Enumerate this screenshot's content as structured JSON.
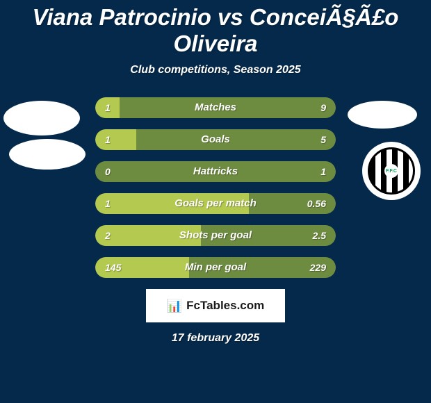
{
  "background_color": "#05294a",
  "text_color": "#ffffff",
  "title": "Viana Patrocinio vs ConceiÃ§Ã£o Oliveira",
  "subtitle": "Club competitions, Season 2025",
  "date": "17 february 2025",
  "watermark": {
    "text": "FcTables.com",
    "bg": "#ffffff",
    "fg": "#1a1a1a",
    "icon": "📊"
  },
  "ellipse_color": "#ffffff",
  "badge": {
    "bg": "#ffffff",
    "text": "F.F.C"
  },
  "bars": {
    "track_bg": "#3d5a78",
    "left_fill": "#b4c94f",
    "right_fill": "#6e8c3f",
    "label_color": "#ffffff",
    "rows": [
      {
        "label": "Matches",
        "left": "1",
        "right": "9",
        "left_pct": 10,
        "right_pct": 90
      },
      {
        "label": "Goals",
        "left": "1",
        "right": "5",
        "left_pct": 17,
        "right_pct": 83
      },
      {
        "label": "Hattricks",
        "left": "0",
        "right": "1",
        "left_pct": 0,
        "right_pct": 100
      },
      {
        "label": "Goals per match",
        "left": "1",
        "right": "0.56",
        "left_pct": 64,
        "right_pct": 36
      },
      {
        "label": "Shots per goal",
        "left": "2",
        "right": "2.5",
        "left_pct": 44,
        "right_pct": 56
      },
      {
        "label": "Min per goal",
        "left": "145",
        "right": "229",
        "left_pct": 39,
        "right_pct": 61
      }
    ]
  }
}
